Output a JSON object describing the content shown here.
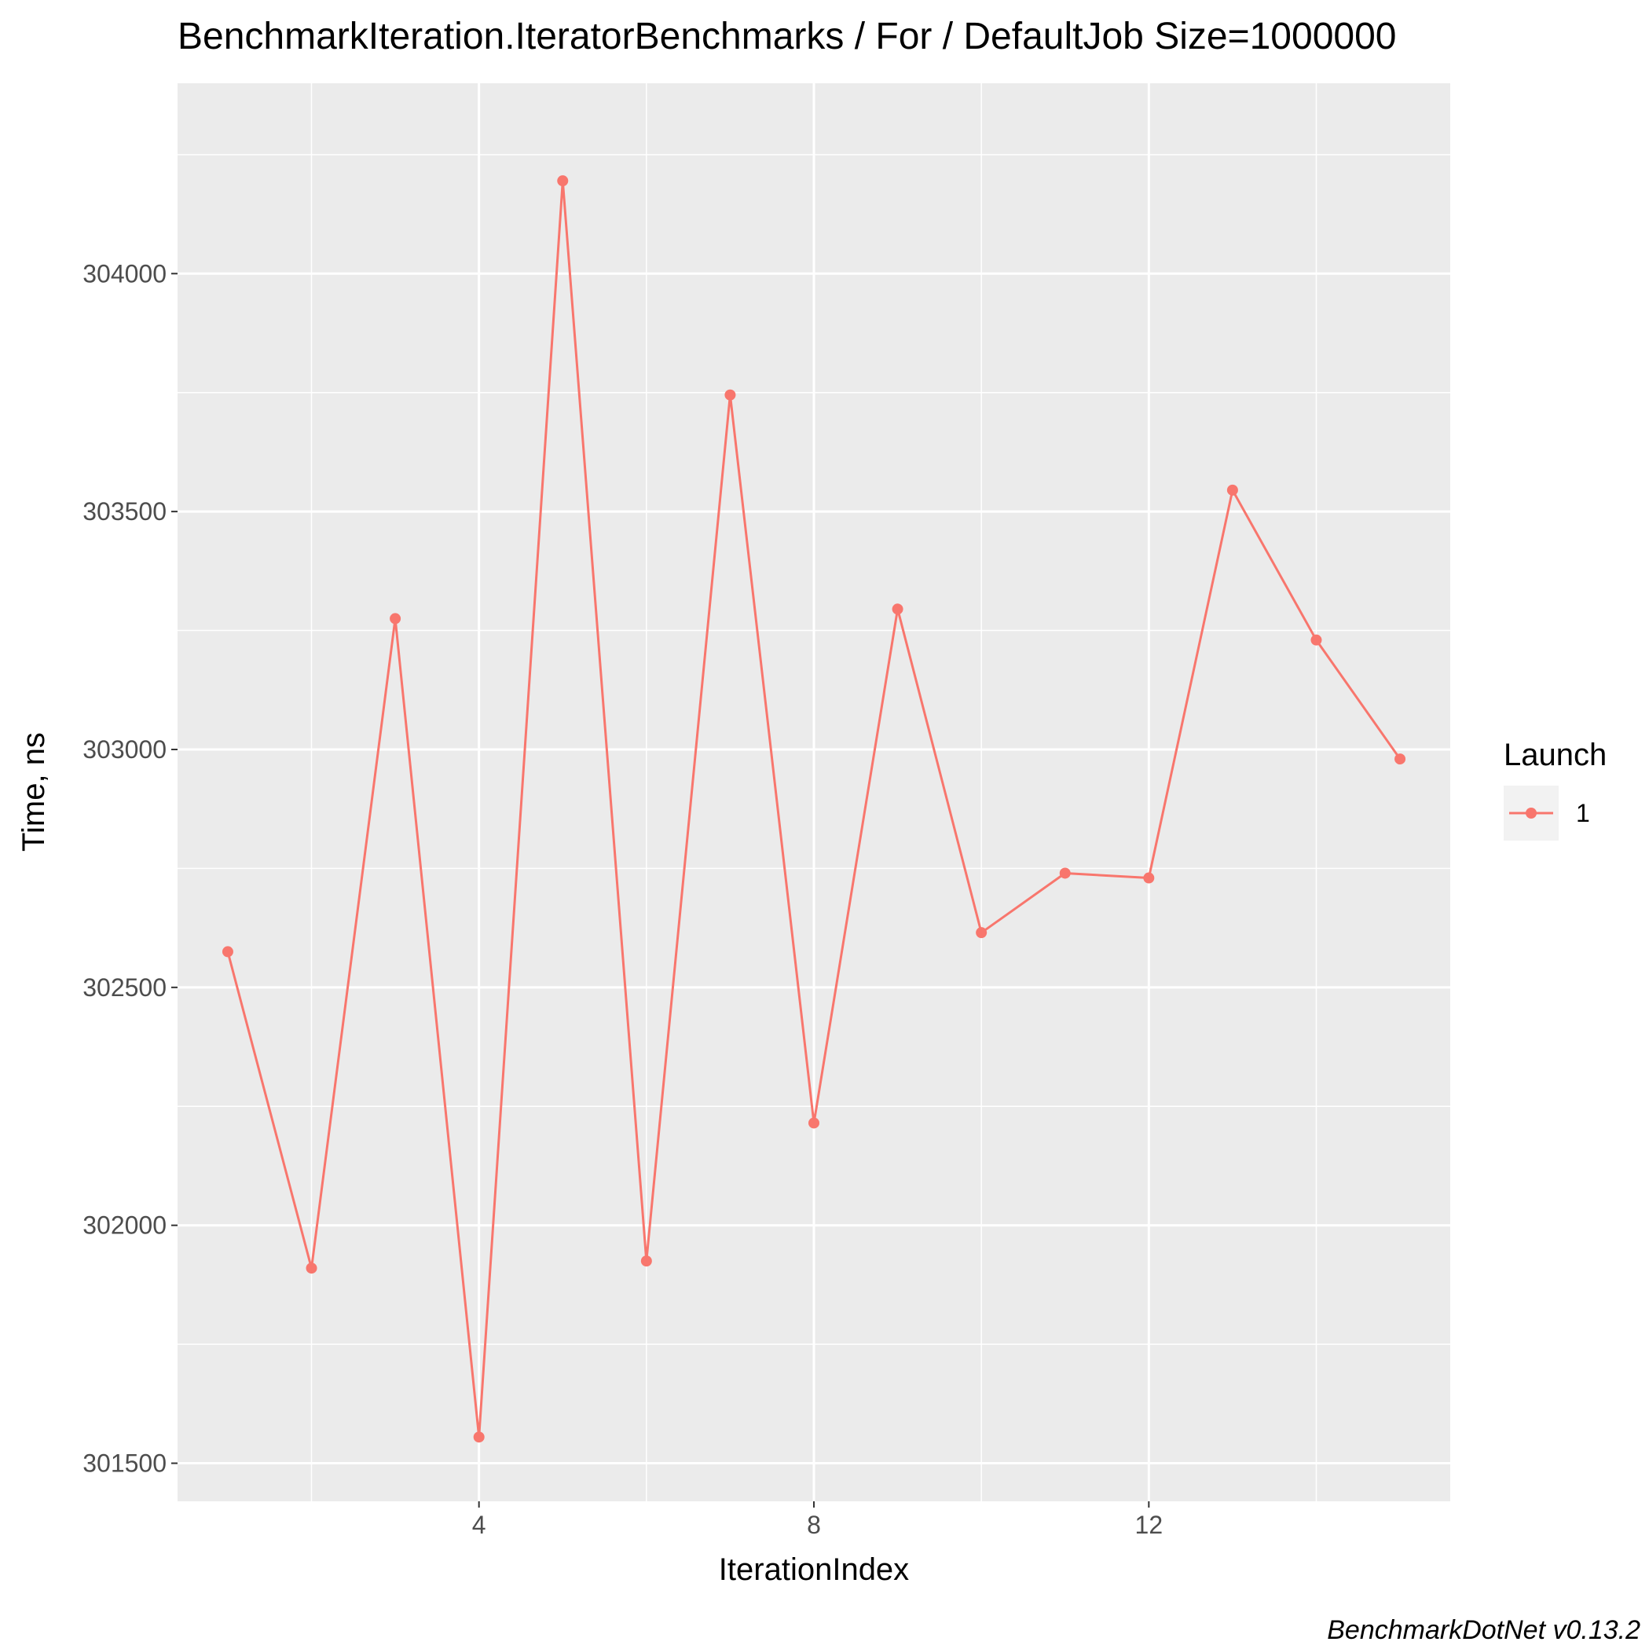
{
  "chart_data": {
    "type": "line",
    "title": "BenchmarkIteration.IteratorBenchmarks / For / DefaultJob Size=1000000",
    "xlabel": "IterationIndex",
    "ylabel": "Time, ns",
    "caption": "BenchmarkDotNet v0.13.2",
    "xlim": [
      0.4,
      15.6
    ],
    "ylim": [
      301420,
      304400
    ],
    "x_ticks": [
      4,
      8,
      12
    ],
    "x_minor_ticks": [
      2,
      6,
      10,
      14
    ],
    "y_ticks": [
      301500,
      302000,
      302500,
      303000,
      303500,
      304000
    ],
    "y_minor_ticks": [
      301750,
      302250,
      302750,
      303250,
      303750,
      304250
    ],
    "grid": true,
    "legend": {
      "title": "Launch",
      "placement": "right"
    },
    "colors": {
      "series": "#f8766d",
      "panel": "#ebebeb",
      "grid": "#ffffff",
      "tick_label": "#4d4d4d"
    },
    "series": [
      {
        "name": "1",
        "x": [
          1,
          2,
          3,
          4,
          5,
          6,
          7,
          8,
          9,
          10,
          11,
          12,
          13,
          14,
          15
        ],
        "values": [
          302575,
          301910,
          303275,
          301555,
          304195,
          301925,
          303745,
          302215,
          303295,
          302615,
          302740,
          302730,
          303545,
          303230,
          302980
        ]
      }
    ]
  }
}
